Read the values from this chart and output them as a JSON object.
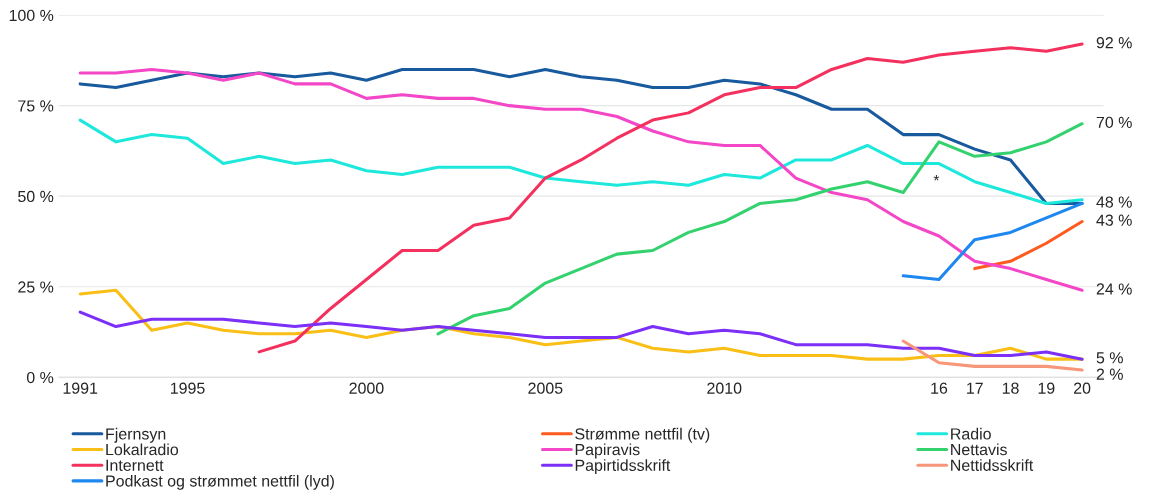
{
  "chart_data": {
    "type": "line",
    "categories": [
      "1991",
      null,
      null,
      "1995",
      null,
      null,
      null,
      null,
      "2000",
      null,
      null,
      null,
      null,
      "2005",
      null,
      null,
      null,
      null,
      "2010",
      null,
      null,
      null,
      null,
      null,
      "16",
      "17",
      "18",
      "19",
      "20"
    ],
    "series": [
      {
        "name": "Fjernsyn",
        "color": "#185a9d",
        "values": [
          81,
          80,
          82,
          84,
          83,
          84,
          83,
          84,
          82,
          85,
          85,
          85,
          83,
          85,
          83,
          82,
          80,
          80,
          82,
          81,
          78,
          74,
          74,
          67,
          67,
          63,
          60,
          48,
          48
        ]
      },
      {
        "name": "Strømme nettfil (tv)",
        "color": "#ff5a1f",
        "values": [
          null,
          null,
          null,
          null,
          null,
          null,
          null,
          null,
          null,
          null,
          null,
          null,
          null,
          null,
          null,
          null,
          null,
          null,
          null,
          null,
          null,
          null,
          null,
          null,
          null,
          30,
          32,
          37,
          43
        ]
      },
      {
        "name": "Radio",
        "color": "#1ee8dc",
        "values": [
          71,
          65,
          67,
          66,
          59,
          61,
          59,
          60,
          57,
          56,
          58,
          58,
          58,
          55,
          54,
          53,
          54,
          53,
          56,
          55,
          60,
          60,
          64,
          59,
          59,
          54,
          51,
          48,
          49
        ]
      },
      {
        "name": "Lokalradio",
        "color": "#f9bf16",
        "values": [
          23,
          24,
          13,
          15,
          13,
          12,
          12,
          13,
          11,
          13,
          14,
          12,
          11,
          9,
          10,
          11,
          8,
          7,
          8,
          6,
          6,
          6,
          5,
          5,
          6,
          6,
          8,
          5,
          5
        ]
      },
      {
        "name": "Papiravis",
        "color": "#f347c8",
        "values": [
          84,
          84,
          85,
          84,
          82,
          84,
          81,
          81,
          77,
          78,
          77,
          77,
          75,
          74,
          74,
          72,
          68,
          65,
          64,
          64,
          55,
          51,
          49,
          43,
          39,
          32,
          30,
          27,
          24
        ]
      },
      {
        "name": "Nettavis",
        "color": "#34d26e",
        "values": [
          null,
          null,
          null,
          null,
          null,
          null,
          null,
          null,
          null,
          null,
          12,
          17,
          19,
          26,
          30,
          34,
          35,
          40,
          43,
          48,
          49,
          52,
          54,
          51,
          65,
          61,
          62,
          65,
          70
        ]
      },
      {
        "name": "Internett",
        "color": "#f4315e",
        "values": [
          null,
          null,
          null,
          null,
          null,
          7,
          10,
          19,
          27,
          35,
          35,
          42,
          44,
          55,
          60,
          66,
          71,
          73,
          78,
          80,
          80,
          85,
          88,
          87,
          89,
          90,
          91,
          90,
          92
        ]
      },
      {
        "name": "Papirtidsskrift",
        "color": "#7b2ff7",
        "values": [
          18,
          14,
          16,
          16,
          16,
          15,
          14,
          15,
          14,
          13,
          14,
          13,
          12,
          11,
          11,
          11,
          14,
          12,
          13,
          12,
          9,
          9,
          9,
          8,
          8,
          6,
          6,
          7,
          5
        ]
      },
      {
        "name": "Nettidsskrift",
        "color": "#f7977a",
        "values": [
          null,
          null,
          null,
          null,
          null,
          null,
          null,
          null,
          null,
          null,
          null,
          null,
          null,
          null,
          null,
          null,
          null,
          null,
          null,
          null,
          null,
          null,
          null,
          10,
          4,
          3,
          3,
          3,
          2
        ]
      },
      {
        "name": "Podkast og strømmet nettfil (lyd)",
        "color": "#1e88f0",
        "values": [
          null,
          null,
          null,
          null,
          null,
          null,
          null,
          null,
          null,
          null,
          null,
          null,
          null,
          null,
          null,
          null,
          null,
          null,
          null,
          null,
          null,
          null,
          null,
          28,
          27,
          38,
          40,
          44,
          48
        ]
      }
    ],
    "ylim": [
      0,
      100
    ],
    "yticks": [
      {
        "value": 0,
        "label": "0 %"
      },
      {
        "value": 25,
        "label": "25 %"
      },
      {
        "value": 50,
        "label": "50 %"
      },
      {
        "value": 75,
        "label": "75 %"
      },
      {
        "value": 100,
        "label": "100 %"
      }
    ],
    "grid": "y",
    "legend": "bottom",
    "annotations": [
      {
        "text": "92 %",
        "x": "20",
        "y": 92
      },
      {
        "text": "70 %",
        "x": "20",
        "y": 70
      },
      {
        "text": "48 %",
        "x": "20",
        "y": 48
      },
      {
        "text": "43 %",
        "x": "20",
        "y": 43
      },
      {
        "text": "24 %",
        "x": "20",
        "y": 24
      },
      {
        "text": "5 %",
        "x": "20",
        "y": 5
      },
      {
        "text": "2 %",
        "x": "20",
        "y": 2
      },
      "*"
    ]
  }
}
